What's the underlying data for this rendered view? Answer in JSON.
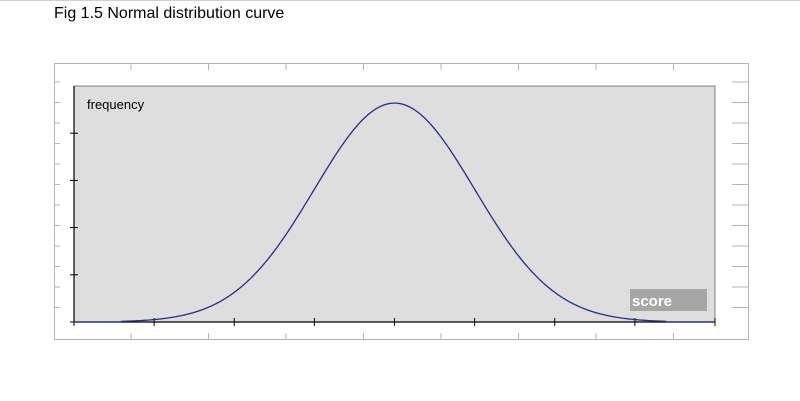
{
  "figure": {
    "caption": "Fig 1.5 Normal distribution curve"
  },
  "colors": {
    "plot_background": "#dedede",
    "curve": "#2b2b8c",
    "axis": "#000000",
    "label_box": "#a6a6a6",
    "outer_frame": "#b4b4b4"
  },
  "chart_data": {
    "type": "line",
    "title": "",
    "ylabel": "frequency",
    "xlabel": "score",
    "mean": 0,
    "std_dev": 1,
    "xlim": [
      -4,
      4
    ],
    "ylim": [
      0,
      0.4
    ],
    "y_ticks": 5,
    "x_ticks": 9,
    "grid": false,
    "legend": "none",
    "series": [
      {
        "x": [
          -3.4,
          -3.0,
          -2.5,
          -2.0,
          -1.5,
          -1.0,
          -0.5,
          0.0,
          0.5,
          1.0,
          1.5,
          2.0,
          2.5,
          3.0,
          3.4
        ],
        "values": [
          0.001,
          0.004,
          0.018,
          0.054,
          0.13,
          0.242,
          0.352,
          0.399,
          0.352,
          0.242,
          0.13,
          0.054,
          0.018,
          0.004,
          0.001
        ]
      }
    ]
  }
}
